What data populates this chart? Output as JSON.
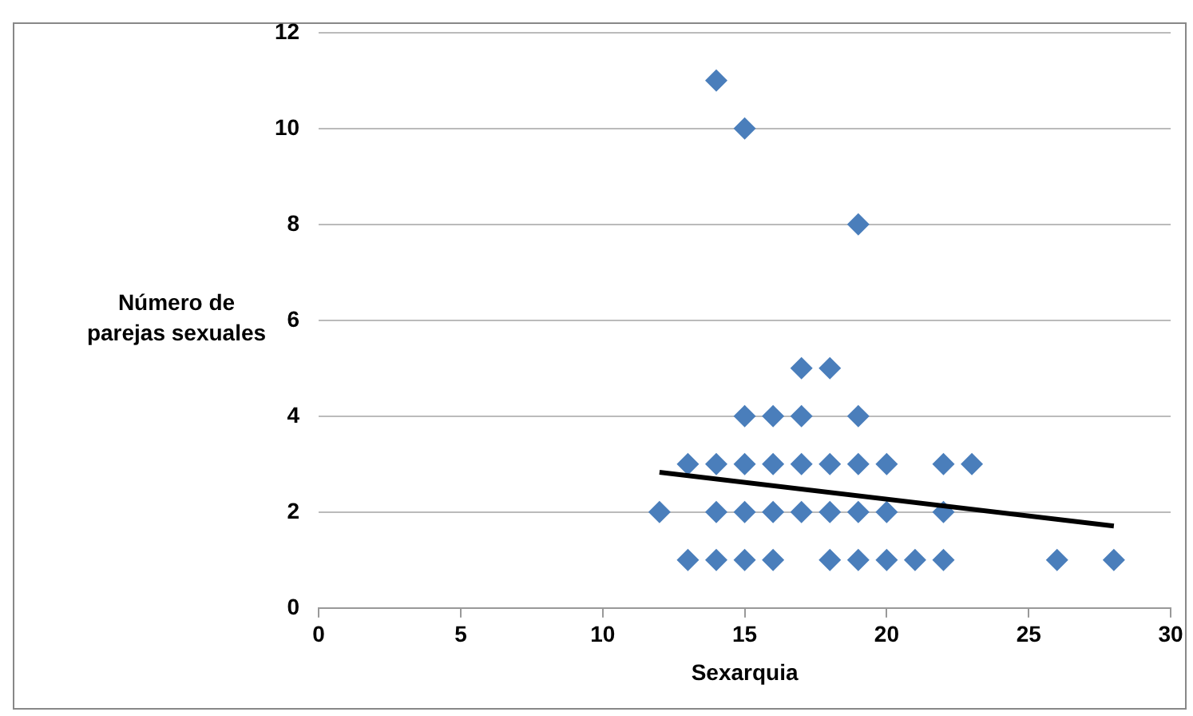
{
  "chart_data": {
    "type": "scatter",
    "xlabel": "Sexarquia",
    "ylabel": "Número de parejas sexuales",
    "marker": "diamond",
    "grid": "y",
    "xlim": [
      0,
      30
    ],
    "xticks": [
      0,
      5,
      10,
      15,
      20,
      25,
      30
    ],
    "ylim": [
      0,
      12
    ],
    "yticks": [
      0,
      2,
      4,
      6,
      8,
      10,
      12
    ],
    "series": [
      {
        "type": "scatter",
        "color": "#4a7ebb",
        "x": [
          13,
          14,
          15,
          16,
          18,
          19,
          20,
          21,
          22,
          26,
          28,
          12,
          14,
          15,
          16,
          17,
          18,
          19,
          20,
          22,
          13,
          14,
          15,
          16,
          17,
          18,
          19,
          20,
          22,
          23,
          15,
          16,
          17,
          19,
          17,
          18,
          19,
          15,
          14
        ],
        "values": [
          1,
          1,
          1,
          1,
          1,
          1,
          1,
          1,
          1,
          1,
          1,
          2,
          2,
          2,
          2,
          2,
          2,
          2,
          2,
          2,
          3,
          3,
          3,
          3,
          3,
          3,
          3,
          3,
          3,
          3,
          4,
          4,
          4,
          4,
          5,
          5,
          8,
          10,
          11
        ]
      },
      {
        "type": "line",
        "marker": "none",
        "color": "#000000",
        "x": [
          12,
          28
        ],
        "values": [
          2.83,
          1.71
        ]
      }
    ]
  }
}
